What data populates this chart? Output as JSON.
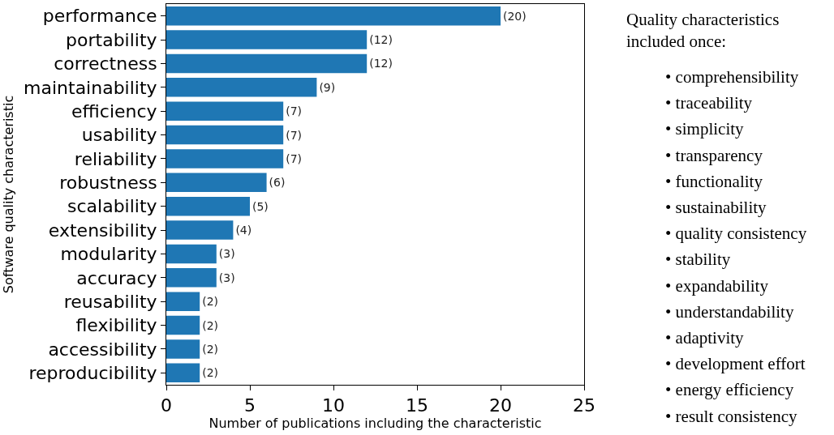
{
  "chart_data": {
    "type": "bar",
    "orientation": "horizontal",
    "xlabel": "Number of publications including the characteristic",
    "ylabel": "Software quality characteristic",
    "categories": [
      "performance",
      "portability",
      "correctness",
      "maintainability",
      "efficiency",
      "usability",
      "reliability",
      "robustness",
      "scalability",
      "extensibility",
      "modularity",
      "accuracy",
      "reusability",
      "flexibility",
      "accessibility",
      "reproducibility"
    ],
    "values": [
      20,
      12,
      12,
      9,
      7,
      7,
      7,
      6,
      5,
      4,
      3,
      3,
      2,
      2,
      2,
      2
    ],
    "value_labels": [
      "(20)",
      "(12)",
      "(12)",
      "(9)",
      "(7)",
      "(7)",
      "(7)",
      "(6)",
      "(5)",
      "(4)",
      "(3)",
      "(3)",
      "(2)",
      "(2)",
      "(2)",
      "(2)"
    ],
    "color": "#1f77b4",
    "xlim": [
      0,
      25
    ],
    "xticks": [
      0,
      5,
      10,
      15,
      20,
      25
    ],
    "annotations": [
      "Quality characteristics included once:",
      "• comprehensibility",
      "• traceability",
      "• simplicity",
      "• transparency",
      "• functionality",
      "• sustainability",
      "• quality consistency",
      "• stability",
      "• expandability",
      "• understandability",
      "• adaptivity",
      "• development effort",
      "• energy efficiency",
      "• result consistency"
    ]
  }
}
